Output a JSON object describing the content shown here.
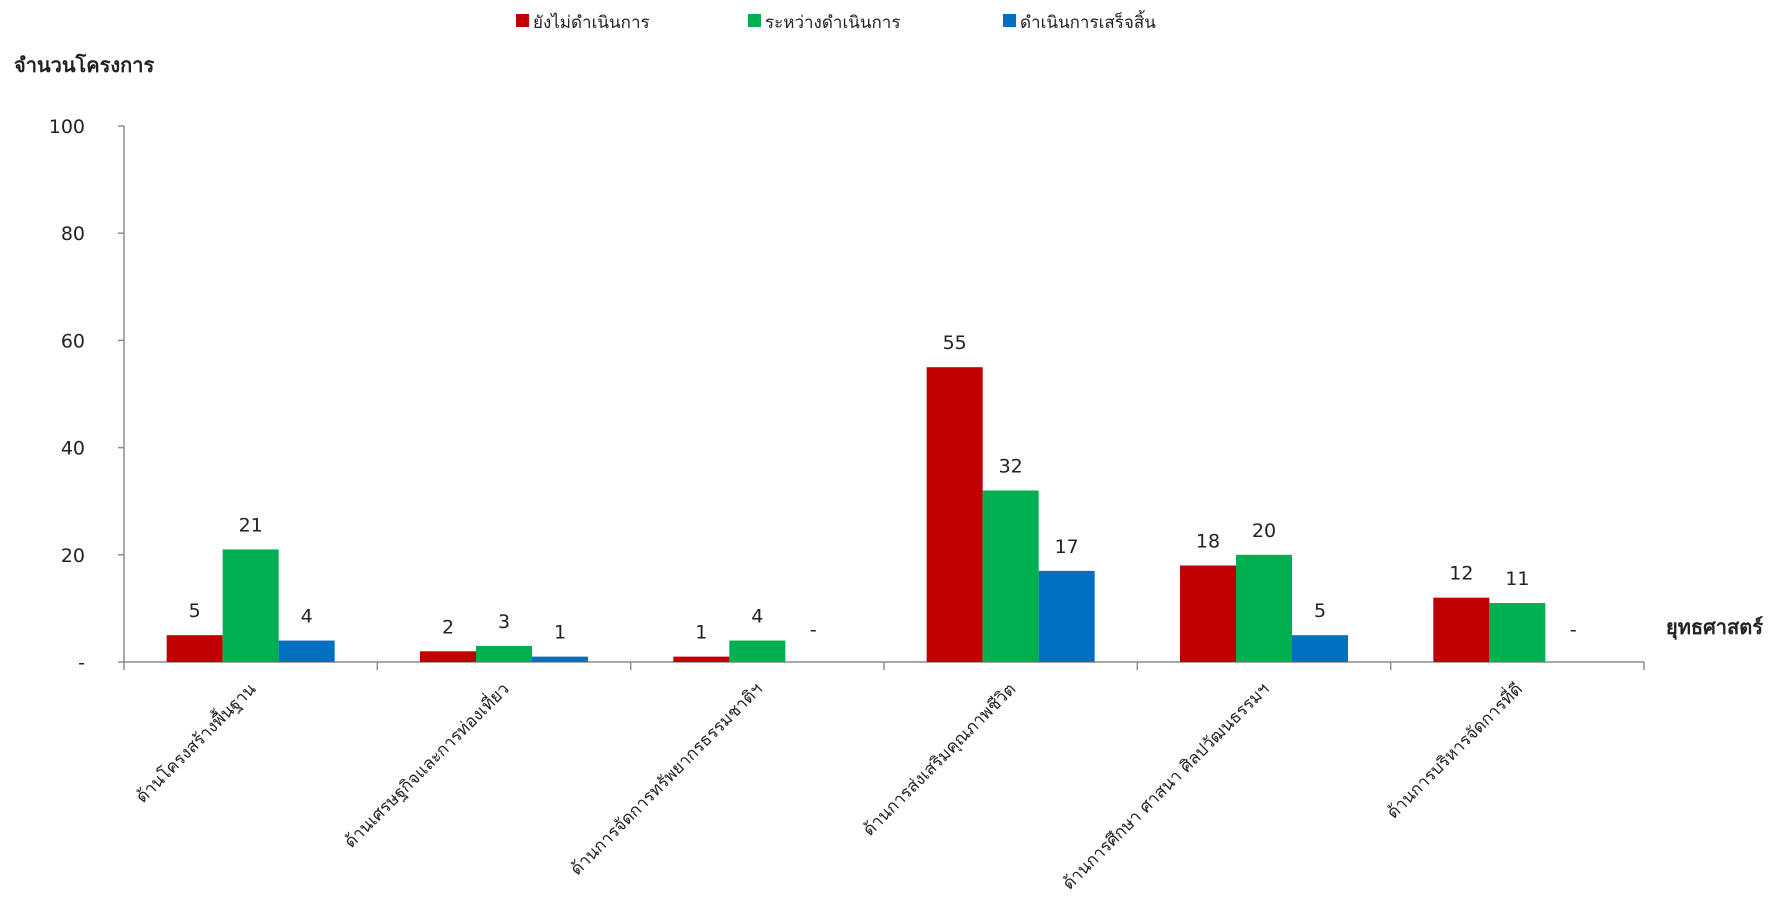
{
  "chart_data": {
    "type": "bar",
    "ylabel": "จำนวนโครงการ",
    "xlabel": "ยุทธศาสตร์",
    "ylim": [
      0,
      100
    ],
    "yticks": [
      {
        "value": 0,
        "label": "-"
      },
      {
        "value": 20,
        "label": "20"
      },
      {
        "value": 40,
        "label": "40"
      },
      {
        "value": 60,
        "label": "60"
      },
      {
        "value": 80,
        "label": "80"
      },
      {
        "value": 100,
        "label": "100"
      }
    ],
    "grid": false,
    "legend_position": "top",
    "categories": [
      "ด้านโครงสร้างพื้นฐาน",
      "ด้านเศรษฐกิจและการท่องเที่ยว",
      "ด้านการจัดการทรัพยากรธรรมชาติฯ",
      "ด้านการส่งเสริมคุณภาพชีวิต",
      "ด้านการศึกษา ศาสนา ศิลปวัฒนธรรมฯ",
      "ด้านการบริหารจัดการที่ดี"
    ],
    "series": [
      {
        "name": "ยังไม่ดำเนินการ",
        "color": "#C00000",
        "values": [
          5,
          2,
          1,
          55,
          18,
          12
        ],
        "labels": [
          "5",
          "2",
          "1",
          "55",
          "18",
          "12"
        ]
      },
      {
        "name": "ระหว่างดำเนินการ",
        "color": "#00B050",
        "values": [
          21,
          3,
          4,
          32,
          20,
          11
        ],
        "labels": [
          "21",
          "3",
          "4",
          "32",
          "20",
          "11"
        ]
      },
      {
        "name": "ดำเนินการเสร็จสิ้น",
        "color": "#0070C0",
        "values": [
          4,
          1,
          0,
          17,
          5,
          0
        ],
        "labels": [
          "4",
          "1",
          "-",
          "17",
          "5",
          "-"
        ]
      }
    ]
  }
}
